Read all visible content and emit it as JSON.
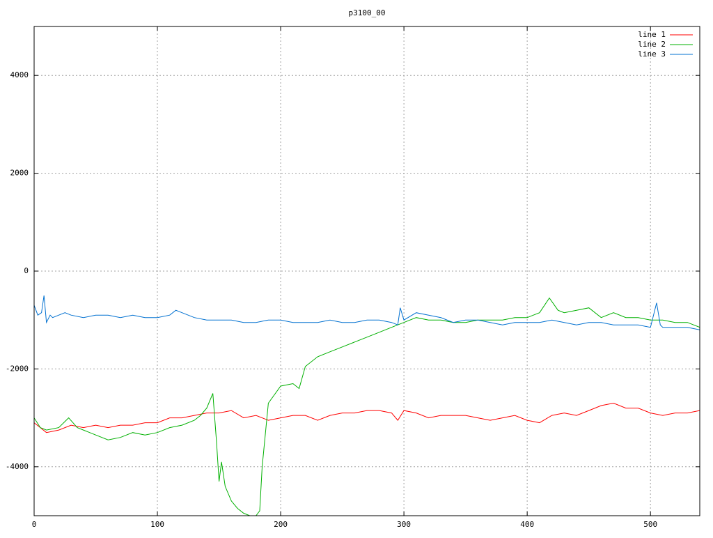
{
  "chart_data": {
    "type": "line",
    "title": "p3100_00",
    "xlim": [
      0,
      540
    ],
    "xticks": [
      0,
      100,
      200,
      300,
      400,
      500
    ],
    "ylim": [
      -5000,
      5000
    ],
    "yticks": [
      -4000,
      -2000,
      0,
      2000,
      4000
    ],
    "grid": true,
    "legend": "top-right",
    "series": [
      {
        "name": "line 1",
        "color": "#ff0000",
        "x": [
          0,
          5,
          10,
          20,
          30,
          40,
          50,
          60,
          70,
          80,
          90,
          100,
          110,
          120,
          130,
          140,
          150,
          160,
          170,
          180,
          190,
          200,
          210,
          220,
          230,
          240,
          250,
          260,
          270,
          280,
          290,
          295,
          300,
          310,
          320,
          330,
          340,
          350,
          360,
          370,
          380,
          390,
          400,
          410,
          420,
          430,
          440,
          450,
          460,
          470,
          480,
          490,
          500,
          510,
          520,
          530,
          540
        ],
        "values": [
          -3100,
          -3200,
          -3300,
          -3250,
          -3150,
          -3200,
          -3150,
          -3200,
          -3150,
          -3150,
          -3100,
          -3100,
          -3000,
          -3000,
          -2950,
          -2900,
          -2900,
          -2850,
          -3000,
          -2950,
          -3050,
          -3000,
          -2950,
          -2950,
          -3050,
          -2950,
          -2900,
          -2900,
          -2850,
          -2850,
          -2900,
          -3050,
          -2850,
          -2900,
          -3000,
          -2950,
          -2950,
          -2950,
          -3000,
          -3050,
          -3000,
          -2950,
          -3050,
          -3100,
          -2950,
          -2900,
          -2950,
          -2850,
          -2750,
          -2700,
          -2800,
          -2800,
          -2900,
          -2950,
          -2900,
          -2900,
          -2850
        ]
      },
      {
        "name": "line 2",
        "color": "#00b000",
        "x": [
          0,
          5,
          10,
          20,
          28,
          35,
          40,
          50,
          60,
          70,
          80,
          90,
          100,
          110,
          120,
          130,
          135,
          140,
          145,
          148,
          150,
          152,
          155,
          160,
          165,
          170,
          175,
          180,
          183,
          185,
          190,
          200,
          210,
          215,
          220,
          230,
          240,
          250,
          260,
          270,
          280,
          290,
          300,
          310,
          320,
          330,
          340,
          350,
          360,
          370,
          380,
          390,
          400,
          410,
          418,
          425,
          430,
          440,
          450,
          460,
          470,
          480,
          490,
          500,
          510,
          520,
          530,
          540
        ],
        "values": [
          -3000,
          -3200,
          -3250,
          -3200,
          -3000,
          -3200,
          -3250,
          -3350,
          -3450,
          -3400,
          -3300,
          -3350,
          -3300,
          -3200,
          -3150,
          -3050,
          -2950,
          -2800,
          -2500,
          -3500,
          -4300,
          -3900,
          -4400,
          -4700,
          -4850,
          -4950,
          -5000,
          -5000,
          -4900,
          -4000,
          -2700,
          -2350,
          -2300,
          -2400,
          -1950,
          -1750,
          -1650,
          -1550,
          -1450,
          -1350,
          -1250,
          -1150,
          -1050,
          -950,
          -1000,
          -1000,
          -1050,
          -1050,
          -1000,
          -1000,
          -1000,
          -950,
          -950,
          -850,
          -550,
          -800,
          -850,
          -800,
          -750,
          -950,
          -850,
          -950,
          -950,
          -1000,
          -1000,
          -1050,
          -1050,
          -1150
        ]
      },
      {
        "name": "line 3",
        "color": "#0070d0",
        "x": [
          0,
          3,
          6,
          8,
          10,
          13,
          15,
          20,
          25,
          30,
          40,
          50,
          60,
          70,
          80,
          90,
          100,
          110,
          115,
          120,
          130,
          140,
          150,
          160,
          170,
          180,
          190,
          200,
          210,
          220,
          230,
          240,
          250,
          260,
          270,
          280,
          290,
          295,
          297,
          300,
          310,
          320,
          330,
          340,
          350,
          360,
          370,
          380,
          390,
          400,
          410,
          420,
          430,
          440,
          450,
          460,
          470,
          480,
          490,
          500,
          505,
          508,
          510,
          520,
          530,
          540
        ],
        "values": [
          -700,
          -900,
          -850,
          -500,
          -1050,
          -900,
          -950,
          -900,
          -850,
          -900,
          -950,
          -900,
          -900,
          -950,
          -900,
          -950,
          -950,
          -900,
          -800,
          -850,
          -950,
          -1000,
          -1000,
          -1000,
          -1050,
          -1050,
          -1000,
          -1000,
          -1050,
          -1050,
          -1050,
          -1000,
          -1050,
          -1050,
          -1000,
          -1000,
          -1050,
          -1100,
          -750,
          -1000,
          -850,
          -900,
          -950,
          -1050,
          -1000,
          -1000,
          -1050,
          -1100,
          -1050,
          -1050,
          -1050,
          -1000,
          -1050,
          -1100,
          -1050,
          -1050,
          -1100,
          -1100,
          -1100,
          -1150,
          -650,
          -1100,
          -1150,
          -1150,
          -1150,
          -1200
        ]
      }
    ]
  }
}
